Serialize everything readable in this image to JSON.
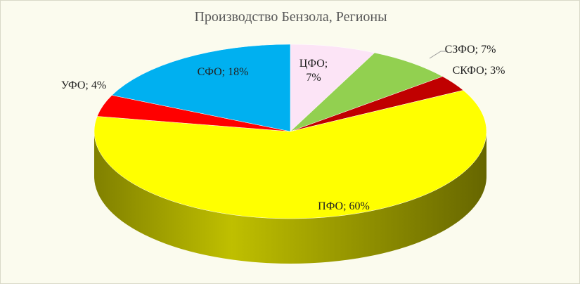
{
  "chart_data": {
    "type": "pie3d",
    "title": "Производство Бензола, Регионы",
    "categories": [
      "ЦФО",
      "СЗФО",
      "СКФО",
      "ПФО",
      "УФО",
      "СФО"
    ],
    "values": [
      7,
      7,
      3,
      60,
      4,
      18
    ],
    "value_labels": [
      "ЦФО; 7%",
      "СЗФО; 7%",
      "СКФО; 3%",
      "ПФО; 60%",
      "УФО; 4%",
      "СФО; 18%"
    ],
    "colors": [
      "#fce4f6",
      "#92d050",
      "#c00000",
      "#ffff00",
      "#ff0000",
      "#00b0f0"
    ]
  }
}
